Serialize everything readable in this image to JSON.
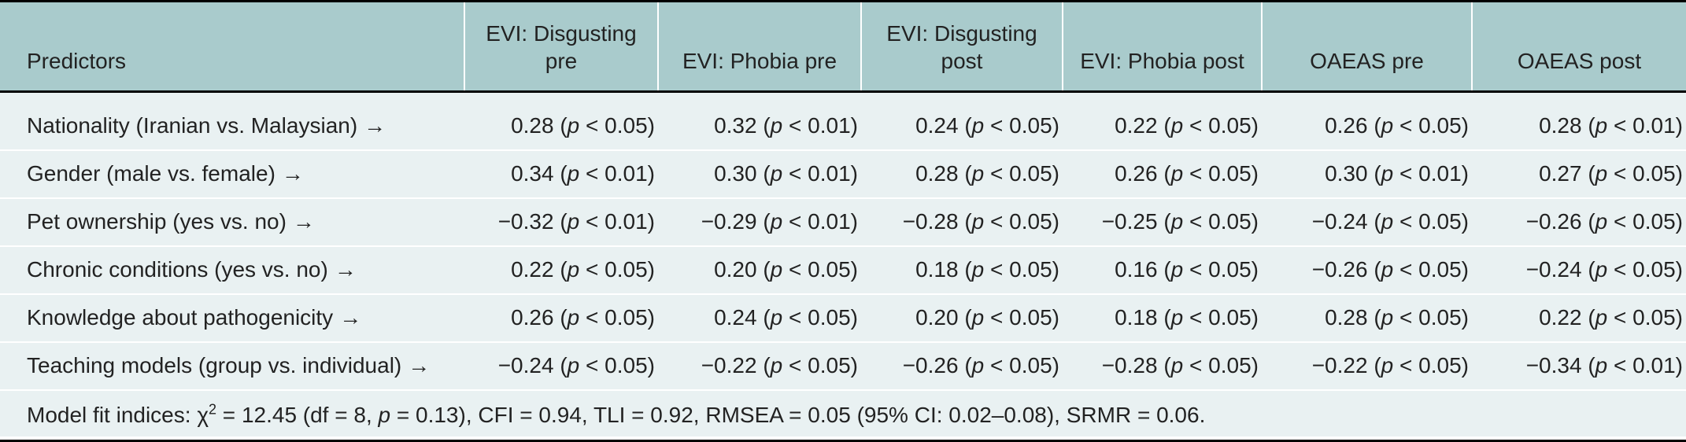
{
  "table": {
    "headers": [
      "Predictors",
      "EVI: Disgusting pre",
      "EVI: Phobia pre",
      "EVI: Disgusting post",
      "EVI: Phobia post",
      "OAEAS pre",
      "OAEAS post"
    ],
    "rows": [
      {
        "predictor": "Nationality (Iranian vs. Malaysian)",
        "values": [
          {
            "coef": "0.28",
            "p": "< 0.05"
          },
          {
            "coef": "0.32",
            "p": "< 0.01"
          },
          {
            "coef": "0.24",
            "p": "< 0.05"
          },
          {
            "coef": "0.22",
            "p": "< 0.05"
          },
          {
            "coef": "0.26",
            "p": "< 0.05"
          },
          {
            "coef": "0.28",
            "p": "< 0.01"
          }
        ]
      },
      {
        "predictor": "Gender (male vs. female)",
        "values": [
          {
            "coef": "0.34",
            "p": "< 0.01"
          },
          {
            "coef": "0.30",
            "p": "< 0.01"
          },
          {
            "coef": "0.28",
            "p": "< 0.05"
          },
          {
            "coef": "0.26",
            "p": "< 0.05"
          },
          {
            "coef": "0.30",
            "p": "< 0.01"
          },
          {
            "coef": "0.27",
            "p": "< 0.05"
          }
        ]
      },
      {
        "predictor": "Pet ownership (yes vs. no)",
        "values": [
          {
            "coef": "−0.32",
            "p": "< 0.01"
          },
          {
            "coef": "−0.29",
            "p": "< 0.01"
          },
          {
            "coef": "−0.28",
            "p": "< 0.05"
          },
          {
            "coef": "−0.25",
            "p": "< 0.05"
          },
          {
            "coef": "−0.24",
            "p": "< 0.05"
          },
          {
            "coef": "−0.26",
            "p": "< 0.05"
          }
        ]
      },
      {
        "predictor": "Chronic conditions (yes vs. no)",
        "values": [
          {
            "coef": "0.22",
            "p": "< 0.05"
          },
          {
            "coef": "0.20",
            "p": "< 0.05"
          },
          {
            "coef": "0.18",
            "p": "< 0.05"
          },
          {
            "coef": "0.16",
            "p": "< 0.05"
          },
          {
            "coef": "−0.26",
            "p": "< 0.05"
          },
          {
            "coef": "−0.24",
            "p": "< 0.05"
          }
        ]
      },
      {
        "predictor": "Knowledge about pathogenicity",
        "values": [
          {
            "coef": "0.26",
            "p": "< 0.05"
          },
          {
            "coef": "0.24",
            "p": "< 0.05"
          },
          {
            "coef": "0.20",
            "p": "< 0.05"
          },
          {
            "coef": "0.18",
            "p": "< 0.05"
          },
          {
            "coef": "0.28",
            "p": "< 0.05"
          },
          {
            "coef": "0.22",
            "p": "< 0.05"
          }
        ]
      },
      {
        "predictor": "Teaching models (group vs. individual)",
        "values": [
          {
            "coef": "−0.24",
            "p": "< 0.05"
          },
          {
            "coef": "−0.22",
            "p": "< 0.05"
          },
          {
            "coef": "−0.26",
            "p": "< 0.05"
          },
          {
            "coef": "−0.28",
            "p": "< 0.05"
          },
          {
            "coef": "−0.22",
            "p": "< 0.05"
          },
          {
            "coef": "−0.34",
            "p": "< 0.01"
          }
        ]
      }
    ],
    "arrow_glyph": "→",
    "p_symbol": "p",
    "footnote": {
      "prefix": "Model fit indices: χ",
      "superscript": "2",
      "middle": " = 12.45 (df = 8, ",
      "p_symbol": "p",
      "suffix": " = 0.13), CFI = 0.94, TLI = 0.92, RMSEA = 0.05 (95% CI: 0.02–0.08), SRMR = 0.06."
    }
  }
}
